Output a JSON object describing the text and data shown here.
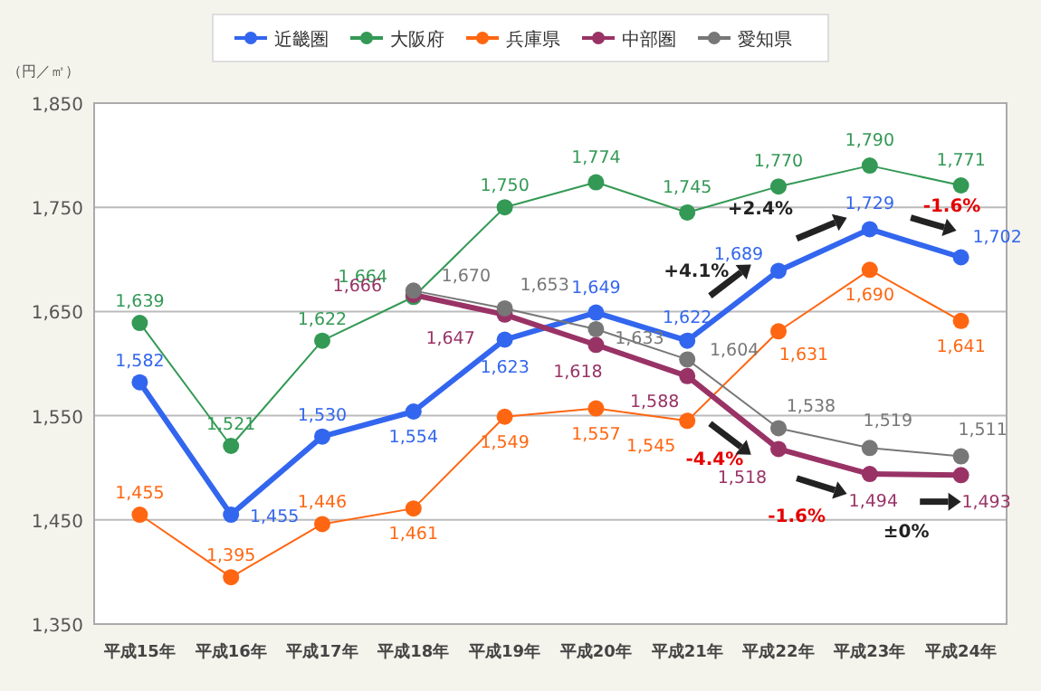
{
  "chart_data": {
    "type": "line",
    "categories": [
      "平成15年",
      "平成16年",
      "平成17年",
      "平成18年",
      "平成19年",
      "平成20年",
      "平成21年",
      "平成22年",
      "平成23年",
      "平成24年"
    ],
    "ylabel": "（円／㎡）",
    "series": [
      {
        "name": "近畿圏",
        "color": "#3366ee",
        "values": [
          1582,
          1455,
          1530,
          1554,
          1623,
          1649,
          1622,
          1689,
          1729,
          1702
        ],
        "value_labels": [
          "1,582",
          "1,455",
          "1,530",
          "1,554",
          "1,623",
          "1,649",
          "1,622",
          "1,689",
          "1,729",
          "1,702"
        ]
      },
      {
        "name": "大阪府",
        "color": "#339955",
        "values": [
          1639,
          1521,
          1622,
          1664,
          1750,
          1774,
          1745,
          1770,
          1790,
          1771
        ],
        "value_labels": [
          "1,639",
          "1,521",
          "1,622",
          "1,664",
          "1,750",
          "1,774",
          "1,745",
          "1,770",
          "1,790",
          "1,771"
        ]
      },
      {
        "name": "兵庫県",
        "color": "#ff6611",
        "values": [
          1455,
          1395,
          1446,
          1461,
          1549,
          1557,
          1545,
          1631,
          1690,
          1641
        ],
        "value_labels": [
          "1,455",
          "1,395",
          "1,446",
          "1,461",
          "1,549",
          "1,557",
          "1,545",
          "1,631",
          "1,690",
          "1,641"
        ]
      },
      {
        "name": "中部圏",
        "color": "#993366",
        "values": [
          null,
          null,
          null,
          1666,
          1647,
          1618,
          1588,
          1518,
          1494,
          1493
        ],
        "value_labels": [
          null,
          null,
          null,
          "1,666",
          "1,647",
          "1,618",
          "1,588",
          "1,518",
          "1,494",
          "1,493"
        ]
      },
      {
        "name": "愛知県",
        "color": "#777777",
        "values": [
          null,
          null,
          null,
          1670,
          1653,
          1633,
          1604,
          1538,
          1519,
          1511
        ],
        "value_labels": [
          null,
          null,
          null,
          "1,670",
          "1,653",
          "1,633",
          "1,604",
          "1,538",
          "1,519",
          "1,511"
        ]
      }
    ],
    "ylim": [
      1350,
      1850
    ],
    "yticks": [
      {
        "value": 1350,
        "label": "1,350"
      },
      {
        "value": 1450,
        "label": "1,450"
      },
      {
        "value": 1550,
        "label": "1,550"
      },
      {
        "value": 1650,
        "label": "1,650"
      },
      {
        "value": 1750,
        "label": "1,750"
      },
      {
        "value": 1850,
        "label": "1,850"
      }
    ],
    "grid": "y",
    "legend": "top",
    "marker": "circle",
    "annotations": [
      "+4.1%",
      "+2.4%",
      "-1.6%",
      "-4.4%",
      "-1.6%",
      "±0%"
    ]
  }
}
